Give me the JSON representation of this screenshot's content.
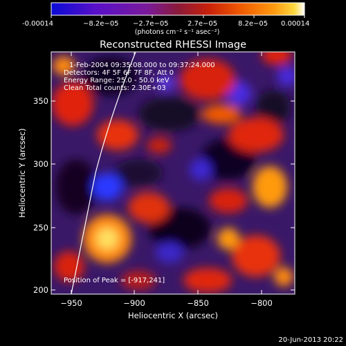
{
  "colorbar": {
    "tick_labels": [
      "-0.00014",
      "−8.2e−05",
      "−2.7e−05",
      "2.7e−05",
      "8.2e−05",
      "0.00014"
    ],
    "unit_label": "(photons cm⁻² s⁻¹ asec⁻²)",
    "colors": [
      "#0a0bd6",
      "#5a10c8",
      "#7a1a9a",
      "#8a1a3a",
      "#c8200a",
      "#f05a00",
      "#ff9a10",
      "#ffd840",
      "#ffffff"
    ]
  },
  "plot": {
    "title": "Reconstructed RHESSI Image",
    "info_lines": [
      "1-Feb-2004 09:35:08.000 to 09:37:24.000",
      "Detectors: 4F 5F 6F 7F 8F, Att 0",
      "Energy Range: 25.0 - 50.0 keV",
      "Clean    Total counts: 2.30E+03"
    ],
    "peak_label": "Position of Peak = [-917,241]",
    "xlabel": "Heliocentric X (arcsec)",
    "ylabel": "Heliocentric Y (arcsec)",
    "x_ticks": [
      "−950",
      "−900",
      "−850",
      "−800"
    ],
    "y_ticks": [
      "200",
      "250",
      "300",
      "350"
    ],
    "x_range": [
      -968,
      -773
    ],
    "y_range": [
      197,
      393
    ]
  },
  "footer": {
    "timestamp": "20-Jun-2013 20:22"
  }
}
